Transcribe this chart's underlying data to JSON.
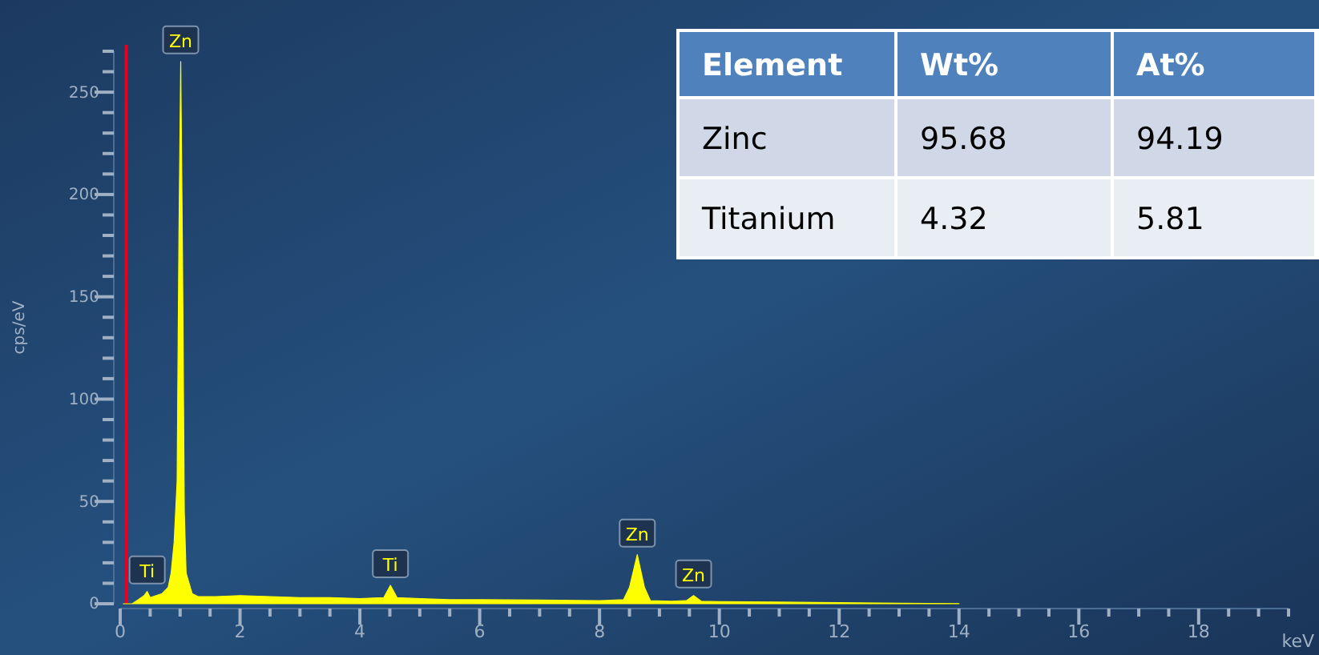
{
  "chart_data": [
    {
      "type": "area",
      "xlabel": "keV",
      "ylabel": "cps/eV",
      "xlim": [
        0,
        19.5
      ],
      "ylim": [
        0,
        270
      ],
      "xticks": [
        0,
        {
          "value": 0.5,
          "label": null
        },
        {
          "value": 1,
          "label": null
        },
        {
          "value": 1.5,
          "label": null
        },
        2,
        {
          "value": 2.5,
          "label": null
        },
        {
          "value": 3,
          "label": null
        },
        {
          "value": 3.5,
          "label": null
        },
        4,
        {
          "value": 4.5,
          "label": null
        },
        {
          "value": 5,
          "label": null
        },
        {
          "value": 5.5,
          "label": null
        },
        6,
        {
          "value": 6.5,
          "label": null
        },
        {
          "value": 7,
          "label": null
        },
        {
          "value": 7.5,
          "label": null
        },
        8,
        {
          "value": 8.5,
          "label": null
        },
        {
          "value": 9,
          "label": null
        },
        {
          "value": 9.5,
          "label": null
        },
        10,
        {
          "value": 10.5,
          "label": null
        },
        {
          "value": 11,
          "label": null
        },
        {
          "value": 11.5,
          "label": null
        },
        12,
        {
          "value": 12.5,
          "label": null
        },
        {
          "value": 13,
          "label": null
        },
        {
          "value": 13.5,
          "label": null
        },
        14,
        {
          "value": 14.5,
          "label": null
        },
        {
          "value": 15,
          "label": null
        },
        {
          "value": 15.5,
          "label": null
        },
        16,
        {
          "value": 16.5,
          "label": null
        },
        {
          "value": 17,
          "label": null
        },
        {
          "value": 17.5,
          "label": null
        },
        18,
        {
          "value": 18.5,
          "label": null
        },
        {
          "value": 19,
          "label": null
        },
        {
          "value": 19.5,
          "label": null
        }
      ],
      "yticks": [
        0,
        {
          "value": 10,
          "label": null
        },
        {
          "value": 20,
          "label": null
        },
        {
          "value": 30,
          "label": null
        },
        {
          "value": 40,
          "label": null
        },
        50,
        {
          "value": 60,
          "label": null
        },
        {
          "value": 70,
          "label": null
        },
        {
          "value": 80,
          "label": null
        },
        {
          "value": 90,
          "label": null
        },
        100,
        {
          "value": 110,
          "label": null
        },
        {
          "value": 120,
          "label": null
        },
        {
          "value": 130,
          "label": null
        },
        {
          "value": 140,
          "label": null
        },
        150,
        {
          "value": 160,
          "label": null
        },
        {
          "value": 170,
          "label": null
        },
        {
          "value": 180,
          "label": null
        },
        {
          "value": 190,
          "label": null
        },
        200,
        {
          "value": 210,
          "label": null
        },
        {
          "value": 220,
          "label": null
        },
        {
          "value": 230,
          "label": null
        },
        {
          "value": 240,
          "label": null
        },
        250,
        {
          "value": 260,
          "label": null
        },
        {
          "value": 270,
          "label": null
        }
      ],
      "x": [
        0.05,
        0.2,
        0.3,
        0.4,
        0.45,
        0.5,
        0.6,
        0.7,
        0.8,
        0.85,
        0.9,
        0.95,
        0.98,
        1.01,
        1.04,
        1.07,
        1.1,
        1.2,
        1.3,
        1.6,
        2,
        2.5,
        3,
        3.5,
        4,
        4.4,
        4.51,
        4.62,
        5,
        5.5,
        6,
        7,
        8,
        8.4,
        8.5,
        8.63,
        8.75,
        8.85,
        9.2,
        9.45,
        9.57,
        9.7,
        10,
        11,
        12,
        13,
        14
      ],
      "values": [
        0,
        0,
        2,
        4,
        6,
        3,
        4,
        5,
        8,
        15,
        30,
        60,
        180,
        265,
        170,
        45,
        15,
        5,
        3.5,
        3.5,
        4,
        3.5,
        3,
        3,
        2.5,
        3,
        9,
        3,
        2.5,
        2,
        2,
        1.8,
        1.5,
        2,
        8,
        24,
        8,
        1.5,
        1.2,
        1.5,
        4,
        1.2,
        1,
        0.8,
        0.5,
        0.3,
        0.1
      ],
      "color": "#ffff00",
      "ref_lines": [
        {
          "axis": "x",
          "value": 0.1,
          "color": "#e8001c"
        }
      ],
      "annotations": [
        {
          "text": "Ti",
          "x": 0.45,
          "y": 6
        },
        {
          "text": "Zn",
          "x": 1.01,
          "y": 265
        },
        {
          "text": "Ti",
          "x": 4.51,
          "y": 9
        },
        {
          "text": "Zn",
          "x": 8.63,
          "y": 24
        },
        {
          "text": "Zn",
          "x": 9.57,
          "y": 4
        }
      ]
    },
    {
      "type": "other",
      "xlabel": "Element",
      "categories": [
        "Zinc",
        "Titanium"
      ],
      "data_labels": true,
      "series": [
        {
          "name": "Wt%",
          "colors": [
            "#d0d8e8",
            "#e9edf4"
          ],
          "values": [
            95.68,
            4.32
          ]
        },
        {
          "name": "At%",
          "colors": [
            "#d0d8e8",
            "#e9edf4"
          ],
          "values": [
            94.19,
            5.81
          ]
        }
      ]
    }
  ]
}
